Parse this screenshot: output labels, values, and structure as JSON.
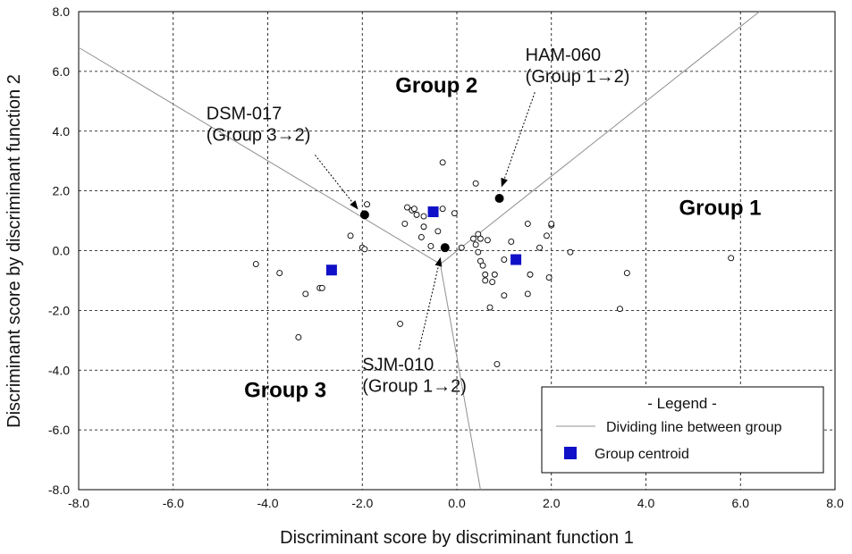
{
  "chart_data": {
    "type": "scatter",
    "xlabel": "Discriminant score by discriminant function 1",
    "ylabel": "Discriminant score by discriminant function 2",
    "xlim": [
      -8.0,
      8.0
    ],
    "ylim": [
      -8.0,
      8.0
    ],
    "x_ticks": [
      "-8.0",
      "-6.0",
      "-4.0",
      "-2.0",
      "0.0",
      "2.0",
      "4.0",
      "6.0",
      "8.0"
    ],
    "y_ticks": [
      "8.0",
      "6.0",
      "4.0",
      "2.0",
      "0.0",
      "-2.0",
      "-4.0",
      "-6.0",
      "-8.0"
    ],
    "grid": true,
    "legend_position": "bottom-right",
    "legend": {
      "title": "- Legend -",
      "items": [
        "Dividing line between group",
        "Group centroid"
      ]
    },
    "group_labels": [
      {
        "text": "Group 2",
        "x": -1.3,
        "y": 5.3
      },
      {
        "text": "Group 1",
        "x": 4.7,
        "y": 1.2
      },
      {
        "text": "Group 3",
        "x": -4.5,
        "y": -4.9
      }
    ],
    "dividing_lines": [
      {
        "x1": -0.35,
        "y1": -0.45,
        "x2": -8.0,
        "y2": 6.8
      },
      {
        "x1": -0.35,
        "y1": -0.45,
        "x2": 6.4,
        "y2": 8.0
      },
      {
        "x1": -0.35,
        "y1": -0.45,
        "x2": 0.5,
        "y2": -8.0
      }
    ],
    "centroids": [
      {
        "x": -0.5,
        "y": 1.3
      },
      {
        "x": 1.25,
        "y": -0.3
      },
      {
        "x": -2.65,
        "y": -0.65
      }
    ],
    "points": [
      {
        "x": -4.25,
        "y": -0.45
      },
      {
        "x": -3.75,
        "y": -0.75
      },
      {
        "x": -3.35,
        "y": -2.9
      },
      {
        "x": -3.2,
        "y": -1.45
      },
      {
        "x": -2.9,
        "y": -1.25
      },
      {
        "x": -2.85,
        "y": -1.25
      },
      {
        "x": -2.25,
        "y": 0.5
      },
      {
        "x": -2.0,
        "y": 0.1
      },
      {
        "x": -1.95,
        "y": 0.05
      },
      {
        "x": -1.9,
        "y": 1.55
      },
      {
        "x": -1.2,
        "y": -2.45
      },
      {
        "x": -1.1,
        "y": 0.9
      },
      {
        "x": -1.05,
        "y": 1.45
      },
      {
        "x": -0.95,
        "y": 1.35
      },
      {
        "x": -0.9,
        "y": 1.4
      },
      {
        "x": -0.85,
        "y": 1.2
      },
      {
        "x": -0.75,
        "y": 0.45
      },
      {
        "x": -0.7,
        "y": 0.8
      },
      {
        "x": -0.7,
        "y": 1.15
      },
      {
        "x": -0.55,
        "y": 0.15
      },
      {
        "x": -0.4,
        "y": 0.65
      },
      {
        "x": -0.3,
        "y": 2.95
      },
      {
        "x": -0.3,
        "y": 1.4
      },
      {
        "x": -0.05,
        "y": 1.25
      },
      {
        "x": 0.1,
        "y": 0.1
      },
      {
        "x": 0.35,
        "y": 0.4
      },
      {
        "x": 0.4,
        "y": 2.25
      },
      {
        "x": 0.4,
        "y": 0.2
      },
      {
        "x": 0.45,
        "y": 0.55
      },
      {
        "x": 0.45,
        "y": -0.05
      },
      {
        "x": 0.5,
        "y": 0.4
      },
      {
        "x": 0.5,
        "y": -0.35
      },
      {
        "x": 0.55,
        "y": -0.5
      },
      {
        "x": 0.6,
        "y": -0.8
      },
      {
        "x": 0.6,
        "y": -1.0
      },
      {
        "x": 0.65,
        "y": 0.35
      },
      {
        "x": 0.7,
        "y": -1.9
      },
      {
        "x": 0.75,
        "y": -1.05
      },
      {
        "x": 0.8,
        "y": -0.8
      },
      {
        "x": 0.85,
        "y": -3.8
      },
      {
        "x": 1.0,
        "y": -0.3
      },
      {
        "x": 1.0,
        "y": -1.5
      },
      {
        "x": 1.15,
        "y": 0.3
      },
      {
        "x": 1.5,
        "y": 0.9
      },
      {
        "x": 1.5,
        "y": -1.45
      },
      {
        "x": 1.55,
        "y": -0.8
      },
      {
        "x": 1.75,
        "y": 0.1
      },
      {
        "x": 1.9,
        "y": 0.5
      },
      {
        "x": 1.95,
        "y": -0.9
      },
      {
        "x": 2.0,
        "y": 0.85
      },
      {
        "x": 2.0,
        "y": 0.9
      },
      {
        "x": 2.4,
        "y": -0.05
      },
      {
        "x": 3.45,
        "y": -1.95
      },
      {
        "x": 3.6,
        "y": -0.75
      },
      {
        "x": 5.8,
        "y": -0.25
      }
    ],
    "highlighted_points": [
      {
        "x": -1.95,
        "y": 1.2
      },
      {
        "x": 0.9,
        "y": 1.75
      },
      {
        "x": -0.25,
        "y": 0.1
      }
    ],
    "annotations": [
      {
        "lines": [
          "HAM-060",
          "(Group 1→2)"
        ],
        "tx": 1.45,
        "ty": 6.35,
        "ax1": 1.65,
        "ay1": 5.3,
        "ax2": 0.95,
        "ay2": 2.15
      },
      {
        "lines": [
          "DSM-017",
          "(Group 3→2)"
        ],
        "tx": -5.3,
        "ty": 4.4,
        "ax1": -3.0,
        "ay1": 3.2,
        "ax2": -2.1,
        "ay2": 1.4
      },
      {
        "lines": [
          "SJM-010",
          "(Group 1→2)"
        ],
        "tx": -2.0,
        "ty": -4.0,
        "ax1": -0.8,
        "ay1": -3.3,
        "ax2": -0.35,
        "ay2": -0.25
      }
    ]
  }
}
